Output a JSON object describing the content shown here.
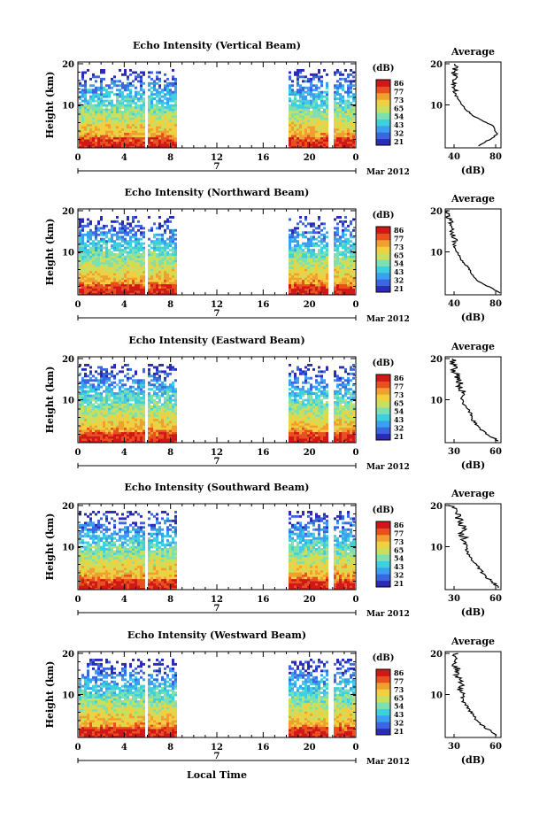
{
  "xaxis": {
    "ticks": [
      "0",
      "4",
      "8",
      "12",
      "16",
      "20",
      "0"
    ],
    "day": "7",
    "month": "Mar 2012",
    "title": "Local Time"
  },
  "heatmap_ylabel": "Height (km)",
  "colorbar_unit": "(dB)",
  "average_title": "Average",
  "average_unit": "(dB)",
  "palette": [
    "#2b2bb8",
    "#3a66e0",
    "#3ba0f0",
    "#3fd0e0",
    "#7ee0b0",
    "#c8e060",
    "#f0d040",
    "#f0a030",
    "#e85020",
    "#d01818"
  ],
  "chart_data": [
    {
      "type": "heatmap",
      "title": "Echo Intensity (Vertical Beam)",
      "y_ticks": [
        "20",
        "10"
      ],
      "colorbar_ticks": [
        "86",
        "77",
        "73",
        "65",
        "54",
        "43",
        "32",
        "21"
      ],
      "avg_x_ticks": [
        "40",
        "80"
      ],
      "x_gaps_hours": [
        [
          5.6,
          6.0
        ],
        [
          8.4,
          18.0
        ],
        [
          21.6,
          21.9
        ]
      ],
      "profile_x": [
        64,
        70,
        78,
        82,
        80,
        78,
        70,
        62,
        56,
        52,
        48,
        46,
        44,
        42,
        42,
        40,
        40,
        42,
        40,
        42,
        42
      ],
      "profile_x_range": [
        32,
        86
      ]
    },
    {
      "type": "heatmap",
      "title": "Echo Intensity (Northward Beam)",
      "y_ticks": [
        "20",
        "10"
      ],
      "colorbar_ticks": [
        "86",
        "77",
        "73",
        "65",
        "54",
        "43",
        "32",
        "21"
      ],
      "avg_x_ticks": [
        "40",
        "80"
      ],
      "x_gaps_hours": [
        [
          5.6,
          6.0
        ],
        [
          8.4,
          18.0
        ],
        [
          21.6,
          21.9
        ]
      ],
      "profile_x": [
        84,
        76,
        68,
        60,
        56,
        54,
        52,
        48,
        44,
        42,
        40,
        38,
        38,
        38,
        36,
        34,
        34,
        34,
        32,
        30,
        30
      ],
      "profile_x_range": [
        28,
        84
      ]
    },
    {
      "type": "heatmap",
      "title": "Echo Intensity (Eastward Beam)",
      "y_ticks": [
        "20",
        "10"
      ],
      "colorbar_ticks": [
        "86",
        "77",
        "73",
        "65",
        "54",
        "43",
        "32",
        "21"
      ],
      "avg_x_ticks": [
        "30",
        "60"
      ],
      "x_gaps_hours": [
        [
          5.6,
          6.0
        ],
        [
          8.4,
          18.0
        ],
        [
          21.6,
          21.9
        ]
      ],
      "profile_x": [
        60,
        56,
        52,
        48,
        46,
        44,
        43,
        42,
        40,
        38,
        37,
        37,
        37,
        35,
        35,
        34,
        34,
        32,
        32,
        31,
        31
      ],
      "profile_x_range": [
        26,
        62
      ]
    },
    {
      "type": "heatmap",
      "title": "Echo Intensity (Southward Beam)",
      "y_ticks": [
        "20",
        "10"
      ],
      "colorbar_ticks": [
        "86",
        "77",
        "73",
        "65",
        "54",
        "43",
        "32",
        "21"
      ],
      "avg_x_ticks": [
        "30",
        "60"
      ],
      "x_gaps_hours": [
        [
          5.6,
          6.0
        ],
        [
          8.4,
          18.0
        ],
        [
          21.6,
          21.9
        ]
      ],
      "profile_x": [
        60,
        58,
        55,
        52,
        50,
        48,
        46,
        44,
        42,
        41,
        41,
        40,
        40,
        38,
        40,
        38,
        38,
        36,
        36,
        34,
        32
      ],
      "profile_x_range": [
        28,
        62
      ]
    },
    {
      "type": "heatmap",
      "title": "Echo Intensity (Westward Beam)",
      "y_ticks": [
        "20",
        "10"
      ],
      "colorbar_ticks": [
        "86",
        "77",
        "73",
        "65",
        "54",
        "43",
        "32",
        "21"
      ],
      "avg_x_ticks": [
        "30",
        "60"
      ],
      "x_gaps_hours": [
        [
          5.6,
          6.0
        ],
        [
          8.4,
          18.0
        ],
        [
          21.6,
          21.9
        ]
      ],
      "profile_x": [
        60,
        56,
        52,
        48,
        46,
        44,
        42,
        40,
        38,
        37,
        38,
        36,
        36,
        35,
        35,
        34,
        34,
        33,
        32,
        32,
        32
      ],
      "profile_x_range": [
        26,
        62
      ]
    }
  ]
}
